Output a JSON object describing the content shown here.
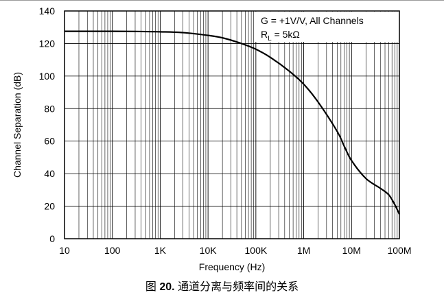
{
  "chart_data": {
    "type": "line",
    "xscale": "log",
    "xlim": [
      10,
      100000000
    ],
    "ylim": [
      0,
      140
    ],
    "xlabel": "Frequency (Hz)",
    "ylabel": "Channel Separation (dB)",
    "xticks": [
      10,
      100,
      1000,
      10000,
      100000,
      1000000,
      10000000,
      100000000
    ],
    "xtick_labels": [
      "10",
      "100",
      "1K",
      "10K",
      "100K",
      "1M",
      "10M",
      "100M"
    ],
    "yticks": [
      0,
      20,
      40,
      60,
      80,
      100,
      120,
      140
    ],
    "ytick_labels": [
      "0",
      "20",
      "40",
      "60",
      "80",
      "100",
      "120",
      "140"
    ],
    "grid": true,
    "annotation_line1": "G = +1V/V, All Channels",
    "annotation_line2_main": "R",
    "annotation_line2_sub": "L",
    "annotation_line2_rest": " = 5kΩ",
    "series": [
      {
        "color": "#000000",
        "x": [
          10,
          30,
          100,
          300,
          1000,
          3000,
          10000,
          20000,
          50000,
          100000,
          200000,
          500000,
          1000000,
          2000000,
          5000000,
          7000000,
          10000000,
          20000000,
          40000000,
          60000000,
          80000000,
          100000000
        ],
        "y": [
          127.5,
          127.5,
          127.5,
          127.4,
          127.2,
          126.7,
          125,
          123.5,
          120,
          116.5,
          111.5,
          103,
          95,
          84,
          66,
          57,
          48,
          37,
          31,
          27,
          21,
          15
        ]
      }
    ]
  },
  "caption": {
    "prefix": "图 ",
    "number": "20.",
    "text": " 通道分离与频率间的关系"
  }
}
